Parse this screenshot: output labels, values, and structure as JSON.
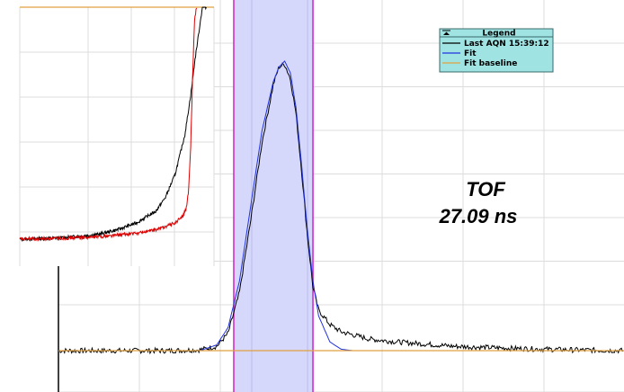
{
  "chart_data": [
    {
      "type": "line",
      "legend": {
        "title": "Legend",
        "entries": [
          {
            "label": "Last AQN 15:39:12",
            "color": "#000000"
          },
          {
            "label": "Fit",
            "color": "#2233dd"
          },
          {
            "label": "Fit baseline",
            "color": "#e0a040"
          }
        ],
        "placement": "top-right"
      },
      "annotation": {
        "line1": "TOF",
        "line2": "27.09 ns"
      },
      "grid": true,
      "x_range": [
        0,
        100
      ],
      "y_range": [
        0,
        100
      ],
      "shaded_window": [
        31,
        45
      ],
      "series": [
        {
          "kind": "signal",
          "color": "#000000",
          "x": [
            0,
            10,
            20,
            25,
            28,
            30,
            32,
            34,
            36,
            38,
            39,
            40,
            41,
            42,
            43,
            44,
            45,
            46,
            48,
            50,
            55,
            60,
            70,
            80,
            90,
            100
          ],
          "y": [
            0,
            0,
            0,
            0.3,
            1.5,
            6,
            20,
            45,
            72,
            92,
            98,
            99,
            94,
            82,
            62,
            40,
            22,
            14,
            9,
            6.5,
            4,
            3,
            1.5,
            0.8,
            0.3,
            0
          ]
        },
        {
          "kind": "fit",
          "color": "#2233dd",
          "x": [
            25,
            28,
            30,
            32,
            34,
            36,
            38,
            39,
            40,
            41,
            42,
            43,
            44,
            45,
            46,
            48,
            50,
            52
          ],
          "y": [
            0,
            2,
            8,
            24,
            50,
            76,
            93,
            98,
            100,
            96,
            84,
            64,
            42,
            24,
            12,
            3,
            0.5,
            0
          ]
        },
        {
          "kind": "fit-baseline",
          "color": "#e0a040",
          "x": [
            0,
            100
          ],
          "y": [
            0,
            0
          ]
        }
      ]
    },
    {
      "type": "line",
      "inset": true,
      "grid": true,
      "x_range": [
        0,
        100
      ],
      "y_range": [
        0,
        100
      ],
      "series": [
        {
          "kind": "black-trace",
          "color": "#000000",
          "x": [
            0,
            20,
            40,
            50,
            60,
            70,
            75,
            80,
            85,
            88,
            90,
            92,
            94,
            96
          ],
          "y": [
            0,
            0.5,
            2,
            4,
            7,
            12,
            18,
            28,
            45,
            62,
            76,
            88,
            100,
            100
          ]
        },
        {
          "kind": "red-trace",
          "color": "#dd0000",
          "x": [
            0,
            20,
            40,
            60,
            70,
            80,
            84,
            86,
            87,
            88,
            89,
            90,
            91
          ],
          "y": [
            0,
            0.3,
            1,
            2.5,
            4,
            7,
            10,
            14,
            22,
            40,
            70,
            95,
            100
          ]
        }
      ]
    }
  ]
}
